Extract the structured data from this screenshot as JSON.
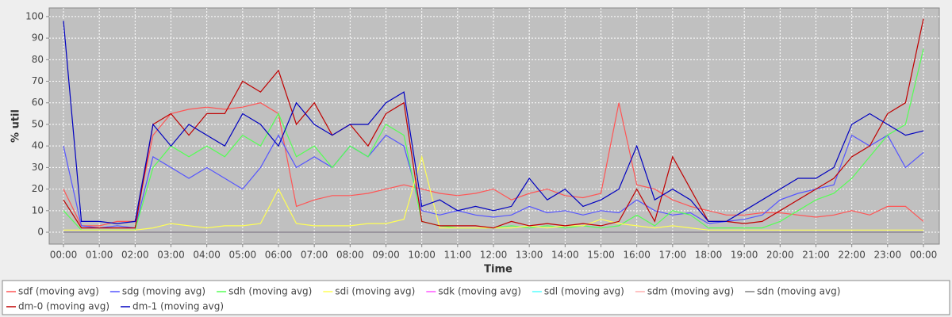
{
  "chart_data": {
    "type": "line",
    "y_label": "% util",
    "x_label": "Time",
    "categories": [
      "00:00",
      null,
      "01:00",
      null,
      "02:00",
      null,
      "03:00",
      null,
      "04:00",
      null,
      "05:00",
      null,
      "06:00",
      null,
      "07:00",
      null,
      "08:00",
      null,
      "09:00",
      null,
      "10:00",
      null,
      "11:00",
      null,
      "12:00",
      null,
      "13:00",
      null,
      "14:00",
      null,
      "15:00",
      null,
      "16:00",
      null,
      "17:00",
      null,
      "18:00",
      null,
      "19:00",
      null,
      "20:00",
      null,
      "21:00",
      null,
      "22:00",
      null,
      "23:00",
      null,
      "00:00"
    ],
    "ylim": [
      -5.5,
      104
    ],
    "yticks": [
      0,
      10,
      20,
      30,
      40,
      50,
      60,
      70,
      80,
      90,
      100
    ],
    "grid": true,
    "legend": "bottom",
    "series": [
      {
        "name": "sdf (moving avg)",
        "color": "#ff5555",
        "values": [
          20,
          3,
          3,
          5,
          5,
          45,
          55,
          57,
          58,
          57,
          58,
          60,
          55,
          12,
          15,
          17,
          17,
          18,
          20,
          22,
          20,
          18,
          17,
          18,
          20,
          15,
          18,
          20,
          17,
          16,
          18,
          60,
          22,
          20,
          15,
          12,
          10,
          8,
          8,
          9,
          9,
          8,
          7,
          8,
          10,
          8,
          12,
          12,
          5
        ]
      },
      {
        "name": "sdg (moving avg)",
        "color": "#5555ff",
        "values": [
          40,
          3,
          2,
          3,
          2,
          35,
          30,
          25,
          30,
          25,
          20,
          30,
          45,
          30,
          35,
          30,
          40,
          35,
          45,
          40,
          10,
          8,
          10,
          8,
          7,
          8,
          12,
          9,
          10,
          8,
          10,
          9,
          15,
          10,
          8,
          9,
          4,
          5,
          6,
          8,
          15,
          18,
          20,
          22,
          45,
          40,
          45,
          30,
          37
        ]
      },
      {
        "name": "sdh (moving avg)",
        "color": "#55ff55",
        "values": [
          10,
          1,
          1,
          1,
          1,
          30,
          40,
          35,
          40,
          35,
          45,
          40,
          55,
          35,
          40,
          30,
          40,
          35,
          50,
          45,
          5,
          3,
          2,
          2,
          2,
          3,
          2,
          3,
          2,
          3,
          2,
          3,
          8,
          3,
          10,
          8,
          2,
          2,
          2,
          2,
          5,
          10,
          15,
          18,
          25,
          35,
          45,
          50,
          85
        ]
      },
      {
        "name": "sdi (moving avg)",
        "color": "#ffff55",
        "values": [
          1,
          1,
          1,
          1,
          1,
          2,
          4,
          3,
          2,
          3,
          3,
          4,
          20,
          4,
          3,
          3,
          3,
          4,
          4,
          6,
          35,
          2,
          2,
          2,
          2,
          2,
          3,
          2,
          3,
          3,
          6,
          4,
          3,
          2,
          3,
          2,
          1,
          1,
          1,
          1,
          1,
          1,
          1,
          1,
          1,
          1,
          1,
          1,
          1
        ]
      },
      {
        "name": "sdk (moving avg)",
        "color": "#ff55ff",
        "values": [
          0,
          0,
          0,
          0,
          0,
          0,
          0,
          0,
          0,
          0,
          0,
          0,
          0,
          0,
          0,
          0,
          0,
          0,
          0,
          0,
          0,
          0,
          0,
          0,
          0,
          0,
          0,
          0,
          0,
          0,
          0,
          0,
          0,
          0,
          0,
          0,
          0,
          0,
          0,
          0,
          0,
          0,
          0,
          0,
          0,
          0,
          0,
          0,
          0
        ]
      },
      {
        "name": "sdl (moving avg)",
        "color": "#55ffff",
        "values": [
          0,
          0,
          0,
          0,
          0,
          0,
          0,
          0,
          0,
          0,
          0,
          0,
          0,
          0,
          0,
          0,
          0,
          0,
          0,
          0,
          0,
          0,
          0,
          0,
          0,
          0,
          0,
          0,
          0,
          0,
          0,
          0,
          0,
          0,
          0,
          0,
          0,
          0,
          0,
          0,
          0,
          0,
          0,
          0,
          0,
          0,
          0,
          0,
          0
        ]
      },
      {
        "name": "sdm (moving avg)",
        "color": "#ffafaf",
        "values": [
          0,
          0,
          0,
          0,
          0,
          0,
          0,
          0,
          0,
          0,
          0,
          0,
          0,
          0,
          0,
          0,
          0,
          0,
          0,
          0,
          0,
          0,
          0,
          0,
          0,
          0,
          0,
          0,
          0,
          0,
          0,
          0,
          0,
          0,
          0,
          0,
          0,
          0,
          0,
          0,
          0,
          0,
          0,
          0,
          0,
          0,
          0,
          0,
          0
        ]
      },
      {
        "name": "sdn (moving avg)",
        "color": "#808080",
        "values": [
          0,
          0,
          0,
          0,
          0,
          0,
          0,
          0,
          0,
          0,
          0,
          0,
          0,
          0,
          0,
          0,
          0,
          0,
          0,
          0,
          0,
          0,
          0,
          0,
          0,
          0,
          0,
          0,
          0,
          0,
          0,
          0,
          0,
          0,
          0,
          0,
          0,
          0,
          0,
          0,
          0,
          0,
          0,
          0,
          0,
          0,
          0,
          0,
          0
        ]
      },
      {
        "name": "dm-0 (moving avg)",
        "color": "#c00000",
        "values": [
          15,
          2,
          2,
          2,
          2,
          50,
          55,
          45,
          55,
          55,
          70,
          65,
          75,
          50,
          60,
          45,
          50,
          40,
          55,
          60,
          5,
          3,
          3,
          3,
          2,
          5,
          3,
          4,
          3,
          4,
          3,
          5,
          20,
          5,
          35,
          20,
          5,
          5,
          4,
          5,
          10,
          15,
          20,
          25,
          35,
          40,
          55,
          60,
          99
        ]
      },
      {
        "name": "dm-1 (moving avg)",
        "color": "#0000c0",
        "values": [
          98,
          5,
          5,
          4,
          5,
          50,
          40,
          50,
          45,
          40,
          55,
          50,
          40,
          60,
          50,
          45,
          50,
          50,
          60,
          65,
          12,
          15,
          10,
          12,
          10,
          12,
          25,
          15,
          20,
          12,
          15,
          20,
          40,
          15,
          20,
          15,
          5,
          5,
          10,
          15,
          20,
          25,
          25,
          30,
          50,
          55,
          50,
          45,
          47
        ]
      }
    ]
  }
}
